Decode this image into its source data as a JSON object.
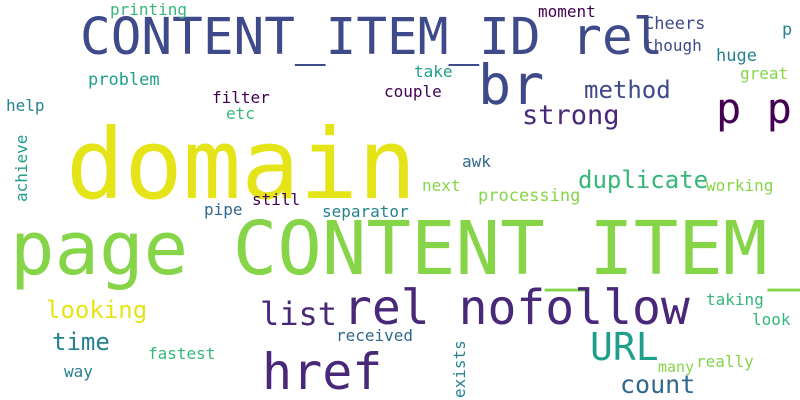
{
  "words": {
    "domain": "domain",
    "page_content_item_id": "page CONTENT_ITEM_ID",
    "content_item_id_rel": "CONTENT_ITEM_ID rel",
    "rel_nofollow": "rel nofollow",
    "href": "href",
    "br": "br",
    "p_p": "p p",
    "url": "URL",
    "list": "list",
    "count": "count",
    "method": "method",
    "strong": "strong",
    "duplicate": "duplicate",
    "looking": "looking",
    "time": "time",
    "printing": "printing",
    "moment": "moment",
    "cheers": "Cheers",
    "though": "though",
    "p": "p",
    "huge": "huge",
    "great": "great",
    "take": "take",
    "problem": "problem",
    "couple": "couple",
    "help": "help",
    "filter": "filter",
    "etc": "etc",
    "achieve": "achieve",
    "awk": "awk",
    "next": "next",
    "working": "working",
    "processing": "processing",
    "pipe": "pipe",
    "still": "still",
    "separator": "separator",
    "taking": "taking",
    "look": "look",
    "received": "received",
    "fastest": "fastest",
    "way": "way",
    "exists": "exists",
    "many": "many",
    "really": "really"
  },
  "colors": {
    "background": "#ffffff",
    "yellow": "#e5e419",
    "light_green": "#86d549",
    "green": "#35b779",
    "teal": "#1f9e89",
    "blue_teal": "#26828e",
    "blue": "#31688e",
    "indigo": "#3e4a89",
    "dark_purple": "#482878",
    "deep_purple": "#440154"
  }
}
